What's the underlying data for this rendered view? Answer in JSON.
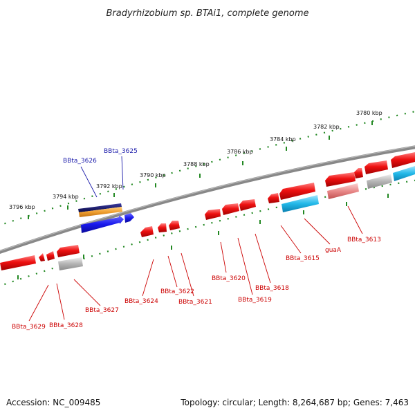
{
  "title": "Bradyrhizobium sp. BTAi1, complete genome",
  "footer": {
    "accession": "Accession: NC_009485",
    "topology": "Topology: circular; Length: 8,264,687 bp; Genes: 7,463"
  },
  "scale_labels": [
    "3796 kbp",
    "3794 kbp",
    "3792 kbp",
    "3790 kbp",
    "3788 kbp",
    "3786 kbp",
    "3784 kbp",
    "3782 kbp",
    "3780 kbp"
  ],
  "genes_top": [
    "BBta_3626",
    "BBta_3625"
  ],
  "genes_bottom": [
    "BBta_3629",
    "BBta_3628",
    "BBta_3627",
    "BBta_3624",
    "BBta_3622",
    "BBta_3621",
    "BBta_3620",
    "BBta_3619",
    "BBta_3618",
    "BBta_3615",
    "guaA",
    "BBta_3613"
  ],
  "colors": {
    "top_strand_label": "#1a1aaa",
    "bottom_strand_label": "#cc0000",
    "gene_red": "#ee1111",
    "gene_blue": "#1a1aee",
    "gene_navy": "#141466",
    "gene_orange": "#f0a030",
    "gene_cyan": "#22b8e8",
    "gene_pink": "#e88888",
    "gene_gray": "#a8a8a8",
    "backbone": "#7a7a7a",
    "ticks": "#228822"
  }
}
